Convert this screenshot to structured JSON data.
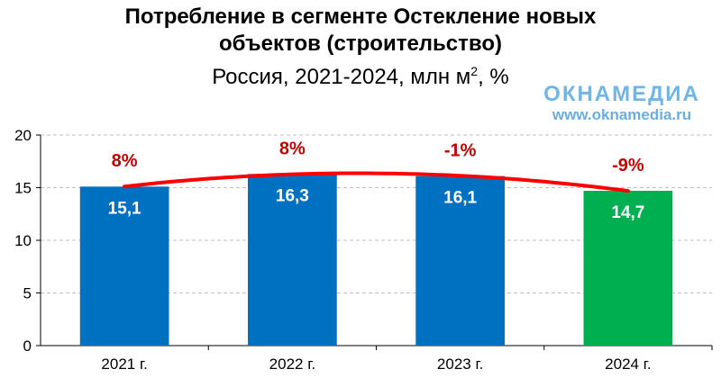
{
  "title": {
    "line1": "Потребление в сегменте Остекление новых",
    "line2": "объектов (строительство)",
    "line3_prefix": "Россия, 2021-2024, млн м",
    "line3_sup": "2",
    "line3_suffix": ", %"
  },
  "brand": {
    "logo": "ОКНАМЕДИА",
    "url": "www.oknamedia.ru"
  },
  "colors": {
    "bar_blue": "#0070c0",
    "bar_green": "#00b050",
    "trend_line": "#ff0000",
    "growth_label": "#c00000",
    "value_label": "#ffffff",
    "grid": "#bfbfbf"
  },
  "chart_data": {
    "type": "bar",
    "categories": [
      "2021 г.",
      "2022 г.",
      "2023 г.",
      "2024 г."
    ],
    "values": [
      15.1,
      16.3,
      16.1,
      14.7
    ],
    "value_labels": [
      "15,1",
      "16,3",
      "16,1",
      "14,7"
    ],
    "growth_labels": [
      "8%",
      "8%",
      "-1%",
      "-9%"
    ],
    "bar_colors": [
      "bar_blue",
      "bar_blue",
      "bar_blue",
      "bar_green"
    ],
    "ylim": [
      0,
      20
    ],
    "yticks": [
      "0",
      "5",
      "10",
      "15",
      "20"
    ],
    "ytick_values": [
      0,
      5,
      10,
      15,
      20
    ],
    "grid": true,
    "trend": "polynomial",
    "xlabel": "",
    "ylabel": ""
  }
}
